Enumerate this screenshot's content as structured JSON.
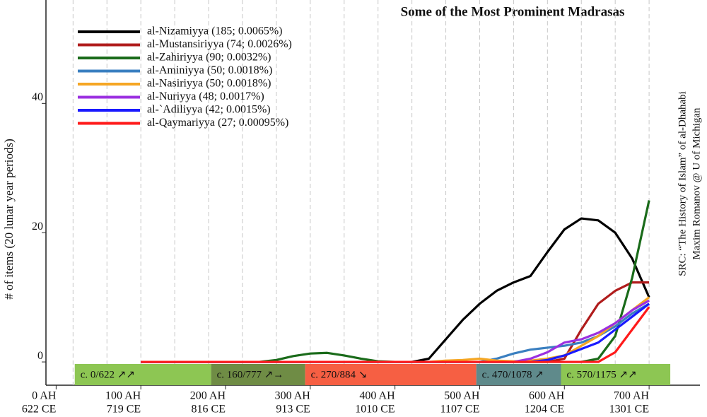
{
  "chart_data": {
    "type": "line",
    "title": "Some of the Most Prominent Madrasas",
    "y_label": "# of items (20 lunar year periods)",
    "source": [
      "SRC: “The History of Islam” of al-Dhahabi",
      "Maxim Romanov @ U of Michigan"
    ],
    "xlim": [
      -12,
      760
    ],
    "ylim": [
      -3.6,
      56
    ],
    "xticks": [
      {
        "value": 0,
        "label": "0 AH"
      },
      {
        "value": 100,
        "label": "100 AH"
      },
      {
        "value": 200,
        "label": "200 AH"
      },
      {
        "value": 300,
        "label": "300 AH"
      },
      {
        "value": 400,
        "label": "400 AH"
      },
      {
        "value": 500,
        "label": "500 AH"
      },
      {
        "value": 600,
        "label": "600 AH"
      },
      {
        "value": 700,
        "label": "700 AH"
      }
    ],
    "xtick_sublabels": [
      "622 CE",
      "719 CE",
      "816 CE",
      "913 CE",
      "1010 CE",
      "1107 CE",
      "1204 CE",
      "1301 CE"
    ],
    "yticks": [
      0,
      20,
      40
    ],
    "xgrid": [
      20,
      60,
      100,
      140,
      180,
      220,
      260,
      300,
      340,
      380,
      420,
      460,
      500,
      540,
      580,
      620,
      660,
      700
    ],
    "periods": [
      {
        "label": "c. 0/622 ↗↗",
        "start": 22,
        "end": 183,
        "color": "#8dc653"
      },
      {
        "label": "c. 160/777 ↗→",
        "start": 183,
        "end": 294,
        "color": "#6f8c45"
      },
      {
        "label": "c. 270/884 ↘",
        "start": 294,
        "end": 496,
        "color": "#f65f43"
      },
      {
        "label": "c. 470/1078 ↗",
        "start": 496,
        "end": 596,
        "color": "#5f8a8b"
      },
      {
        "label": "c. 570/1175 ↗↗",
        "start": 596,
        "end": 725,
        "color": "#8dc653"
      }
    ],
    "x": [
      100,
      120,
      140,
      160,
      180,
      200,
      220,
      240,
      260,
      280,
      300,
      320,
      340,
      360,
      380,
      400,
      420,
      440,
      460,
      480,
      500,
      520,
      540,
      560,
      580,
      600,
      620,
      640,
      660,
      680,
      700
    ],
    "series": [
      {
        "name": "al-Nizamiyya (185; 0.0065%)",
        "color": "#000000",
        "values": [
          0,
          0,
          0,
          0,
          0,
          0,
          0,
          0,
          0,
          0,
          0,
          0,
          0,
          0,
          0,
          0,
          0,
          0.5,
          3.5,
          6.5,
          9,
          11,
          12.3,
          13.3,
          17,
          20.5,
          22.2,
          21.9,
          20,
          16,
          10
        ]
      },
      {
        "name": "al-Mustansiriyya (74; 0.0026%)",
        "color": "#b01c1c",
        "values": [
          0,
          0,
          0,
          0,
          0,
          0,
          0,
          0,
          0,
          0,
          0,
          0,
          0,
          0,
          0,
          0,
          0,
          0,
          0,
          0,
          0,
          0,
          0,
          0,
          0,
          0.5,
          5,
          9,
          11,
          12.3,
          12.3
        ]
      },
      {
        "name": "al-Zahiriyya (90; 0.0032%)",
        "color": "#1a6b1a",
        "values": [
          0,
          0,
          0,
          0,
          0,
          0,
          0,
          0,
          0.3,
          0.9,
          1.3,
          1.4,
          1,
          0.5,
          0.1,
          0,
          0,
          0,
          0,
          0,
          0,
          0,
          0,
          0,
          0,
          0,
          0,
          0.5,
          4,
          13,
          25
        ]
      },
      {
        "name": "al-Aminiyya (50; 0.0018%)",
        "color": "#3a7fc0",
        "values": [
          0,
          0,
          0,
          0,
          0,
          0,
          0,
          0,
          0,
          0,
          0,
          0,
          0,
          0,
          0,
          0,
          0,
          0,
          0,
          0,
          0,
          0.5,
          1.3,
          1.9,
          2.2,
          2.5,
          3,
          4,
          5.5,
          7.5,
          9
        ]
      },
      {
        "name": "al-Nasiriyya (50; 0.0018%)",
        "color": "#f5a623",
        "values": [
          0,
          0,
          0,
          0,
          0,
          0,
          0,
          0,
          0,
          0,
          0,
          0,
          0,
          0,
          0,
          0,
          0,
          0,
          0.2,
          0.3,
          0.5,
          0.2,
          0.1,
          0.2,
          0.5,
          1,
          2.5,
          4,
          6,
          8,
          10
        ]
      },
      {
        "name": "al-Nuriyya (48; 0.0017%)",
        "color": "#9b30e0",
        "values": [
          0,
          0,
          0,
          0,
          0,
          0,
          0,
          0,
          0,
          0,
          0,
          0,
          0,
          0,
          0,
          0,
          0,
          0,
          0,
          0,
          0,
          0,
          0,
          0.5,
          1.5,
          3,
          3.5,
          4.5,
          6,
          8,
          9.5
        ]
      },
      {
        "name": "al-`Adiliyya (42; 0.0015%)",
        "color": "#1a1aff",
        "values": [
          0,
          0,
          0,
          0,
          0,
          0,
          0,
          0,
          0,
          0,
          0,
          0,
          0,
          0,
          0,
          0,
          0,
          0,
          0,
          0,
          0,
          0,
          0,
          0,
          0.3,
          1,
          2,
          3,
          5,
          7,
          9
        ]
      },
      {
        "name": "al-Qaymariyya (27; 0.00095%)",
        "color": "#ff1a1a",
        "values": [
          0,
          0,
          0,
          0,
          0,
          0,
          0,
          0,
          0,
          0,
          0,
          0,
          0,
          0,
          0,
          0,
          0,
          0,
          0,
          0,
          0,
          0,
          0,
          0,
          0,
          0,
          0,
          0,
          1.5,
          5,
          8.5
        ]
      }
    ]
  }
}
